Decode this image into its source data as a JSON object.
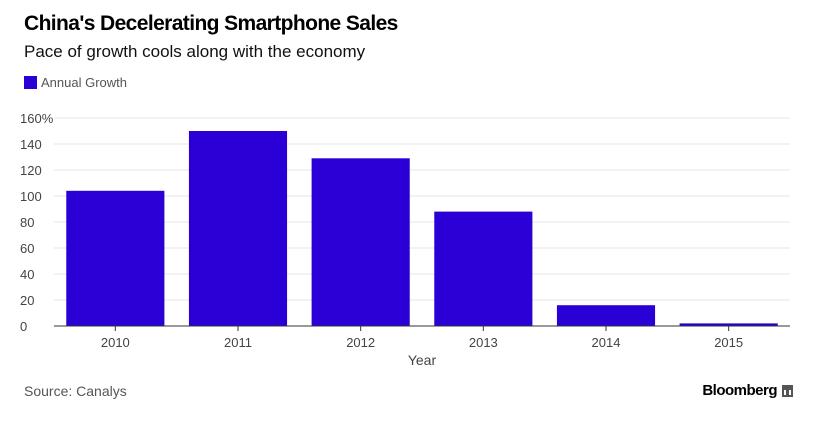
{
  "chart_data": {
    "type": "bar",
    "title": "China's Decelerating Smartphone Sales",
    "subtitle": "Pace of growth cools along with the economy",
    "categories": [
      "2010",
      "2011",
      "2012",
      "2013",
      "2014",
      "2015"
    ],
    "series": [
      {
        "name": "Annual Growth",
        "values": [
          104,
          150,
          129,
          88,
          16,
          2
        ]
      }
    ],
    "xlabel": "Year",
    "ylabel": "",
    "ylim": [
      0,
      160
    ],
    "yticks": [
      0,
      20,
      40,
      60,
      80,
      100,
      120,
      140,
      160
    ],
    "ytick_labels": [
      "0",
      "20",
      "40",
      "60",
      "80",
      "100",
      "120",
      "140",
      "160%"
    ],
    "grid": true,
    "legend_position": "top-left",
    "color": "#2a00d6"
  },
  "source": "Source: Canalys",
  "brand": "Bloomberg"
}
